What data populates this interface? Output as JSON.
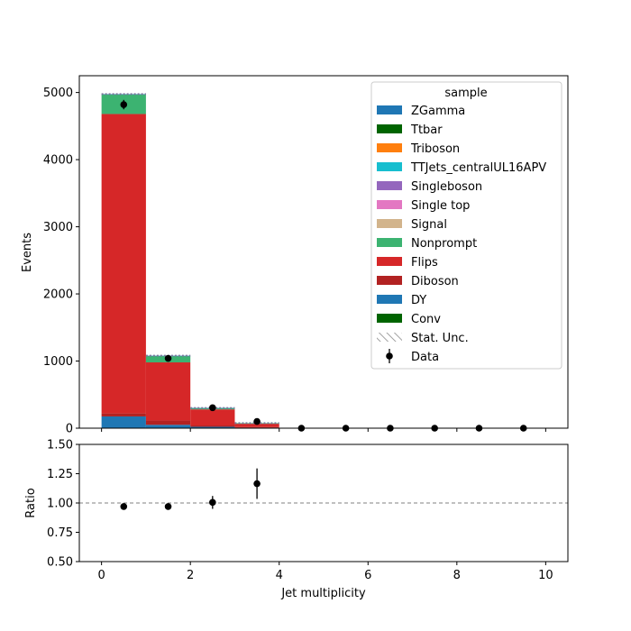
{
  "chart_data": [
    {
      "type": "bar",
      "stacked": true,
      "ylabel": "Events",
      "ylim": [
        0,
        5250
      ],
      "xlim": [
        -0.5,
        10.5
      ],
      "yticks": [
        0,
        1000,
        2000,
        3000,
        4000,
        5000
      ],
      "bin_edges": [
        0,
        1,
        2,
        3,
        4,
        5,
        6,
        7,
        8,
        9,
        10
      ],
      "legend": {
        "title": "sample",
        "placement": "top-right",
        "entries": [
          "ZGamma",
          "Ttbar",
          "Triboson",
          "TTJets_centralUL16APV",
          "Singleboson",
          "Single top",
          "Signal",
          "Nonprompt",
          "Flips",
          "Diboson",
          "DY",
          "Conv",
          "Stat. Unc.",
          "Data"
        ]
      },
      "series": [
        {
          "name": "DY",
          "color": "#1f77b4",
          "values": [
            175,
            50,
            20,
            8,
            0,
            0,
            0,
            0,
            0,
            0
          ]
        },
        {
          "name": "Diboson",
          "color": "#b22222",
          "values": [
            45,
            65,
            20,
            8,
            0,
            0,
            0,
            0,
            0,
            0
          ]
        },
        {
          "name": "Flips",
          "color": "#d62728",
          "values": [
            4460,
            865,
            240,
            50,
            0,
            0,
            0,
            0,
            0,
            0
          ]
        },
        {
          "name": "Nonprompt",
          "color": "#3cb371",
          "values": [
            290,
            95,
            20,
            9,
            0,
            0,
            0,
            0,
            0,
            0
          ]
        },
        {
          "name": "ZGamma",
          "color": "#1f77b4",
          "values": [
            6,
            4,
            1,
            0,
            0,
            0,
            0,
            0,
            0,
            0
          ]
        }
      ],
      "legend_colors": {
        "ZGamma": "#1f77b4",
        "Ttbar": "#006400",
        "Triboson": "#ff7f0e",
        "TTJets_centralUL16APV": "#17becf",
        "Singleboson": "#9467bd",
        "Single top": "#e377c2",
        "Signal": "#d2b48c",
        "Nonprompt": "#3cb371",
        "Flips": "#d62728",
        "Diboson": "#b22222",
        "DY": "#1f77b4",
        "Conv": "#006400"
      },
      "data_points": {
        "name": "Data",
        "x": [
          0.5,
          1.5,
          2.5,
          3.5,
          4.5,
          5.5,
          6.5,
          7.5,
          8.5,
          9.5
        ],
        "y": [
          4820,
          1040,
          305,
          100,
          0,
          0,
          0,
          0,
          0,
          0
        ],
        "yerr": [
          70,
          32,
          17,
          10,
          0,
          0,
          0,
          0,
          0,
          0
        ]
      }
    },
    {
      "type": "scatter",
      "xlabel": "Jet multiplicity",
      "ylabel": "Ratio",
      "ylim": [
        0.5,
        1.5
      ],
      "xlim": [
        -0.5,
        10.5
      ],
      "yticks": [
        "0.50",
        "0.75",
        "1.00",
        "1.25",
        "1.50"
      ],
      "xticks": [
        "0",
        "2",
        "4",
        "6",
        "8",
        "10"
      ],
      "reference_line": 1.0,
      "points": {
        "x": [
          0.5,
          1.5,
          2.5,
          3.5
        ],
        "y": [
          0.97,
          0.97,
          1.005,
          1.165
        ],
        "yerr": [
          0.012,
          0.018,
          0.055,
          0.13
        ]
      }
    }
  ]
}
